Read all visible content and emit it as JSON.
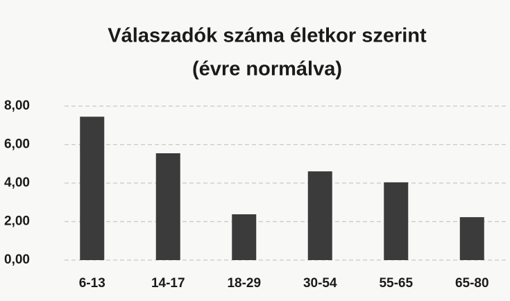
{
  "chart_data": {
    "type": "bar",
    "title": "Válaszadók száma életkor szerint",
    "subtitle": "(évre normálva)",
    "categories": [
      "6-13",
      "14-17",
      "18-29",
      "30-54",
      "55-65",
      "65-80"
    ],
    "values": [
      7.45,
      5.55,
      2.38,
      4.61,
      4.04,
      2.23
    ],
    "color": "#3b3b3b",
    "ylim": [
      0,
      8
    ],
    "yticks": [
      {
        "value": 0,
        "label": "0,00"
      },
      {
        "value": 2,
        "label": "2,00"
      },
      {
        "value": 4,
        "label": "4,00"
      },
      {
        "value": 6,
        "label": "6,00"
      },
      {
        "value": 8,
        "label": "8,00"
      }
    ],
    "grid": true
  }
}
